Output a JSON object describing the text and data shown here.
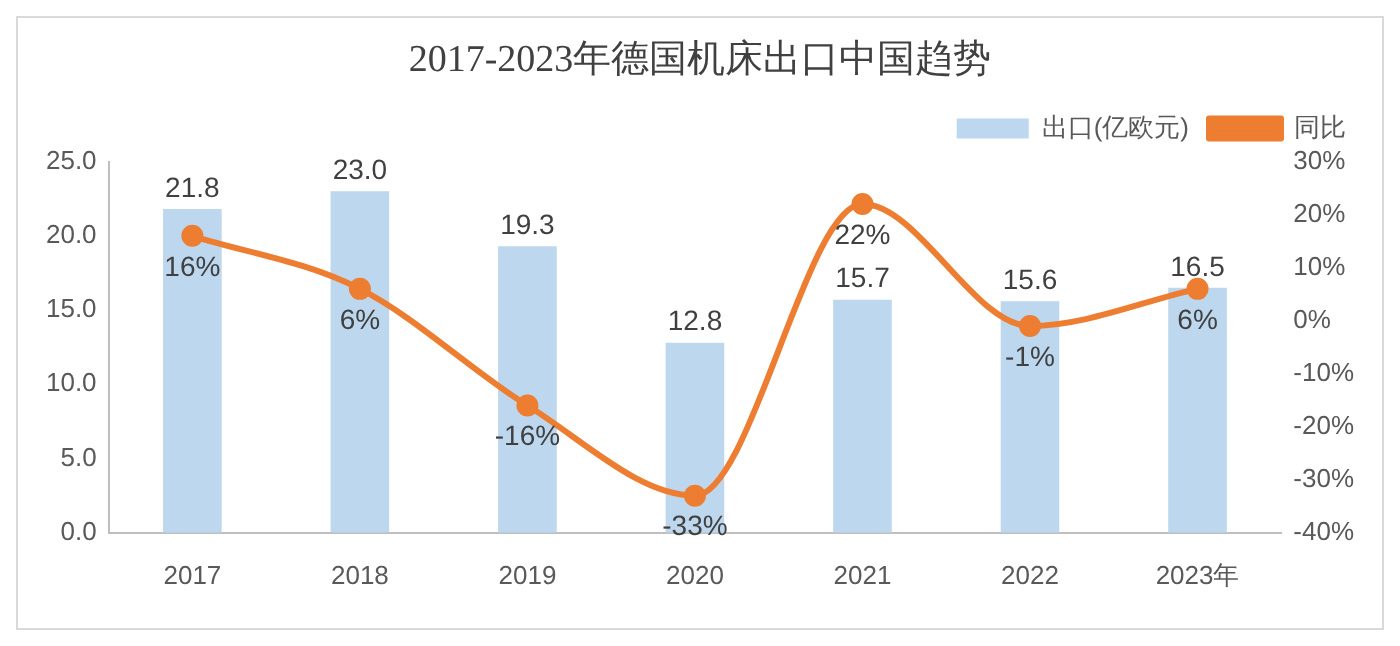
{
  "chart_data": {
    "type": "bar",
    "title": "2017-2023年德国机床出口中国趋势",
    "categories": [
      "2017",
      "2018",
      "2019",
      "2020",
      "2021",
      "2022",
      "2023年"
    ],
    "series": [
      {
        "name": "出口(亿欧元)",
        "color": "#bdd7ee",
        "values": [
          21.8,
          23.0,
          19.3,
          12.8,
          15.7,
          15.6,
          16.5
        ],
        "value_labels": [
          "21.8",
          "23.0",
          "19.3",
          "12.8",
          "15.7",
          "15.6",
          "16.5"
        ]
      },
      {
        "name": "同比",
        "type": "line",
        "axis": "y2",
        "color": "#ed7d31",
        "marker": "circle",
        "values": [
          16,
          6,
          -16,
          -33,
          22,
          -1,
          6
        ],
        "value_labels": [
          "16%",
          "6%",
          "-16%",
          "-33%",
          "22%",
          "-1%",
          "6%"
        ]
      }
    ],
    "ylim": [
      0,
      25
    ],
    "yticks": [
      {
        "value": 0,
        "label": "0.0"
      },
      {
        "value": 5,
        "label": "5.0"
      },
      {
        "value": 10,
        "label": "10.0"
      },
      {
        "value": 15,
        "label": "15.0"
      },
      {
        "value": 20,
        "label": "20.0"
      },
      {
        "value": 25,
        "label": "25.0"
      }
    ],
    "y2lim": [
      -40,
      30
    ],
    "y2ticks": [
      {
        "value": -40,
        "label": "-40%"
      },
      {
        "value": -30,
        "label": "-30%"
      },
      {
        "value": -20,
        "label": "-20%"
      },
      {
        "value": -10,
        "label": "-10%"
      },
      {
        "value": 0,
        "label": "0%"
      },
      {
        "value": 10,
        "label": "10%"
      },
      {
        "value": 20,
        "label": "20%"
      },
      {
        "value": 30,
        "label": "30%"
      }
    ],
    "grid": false,
    "legend": "top right"
  }
}
